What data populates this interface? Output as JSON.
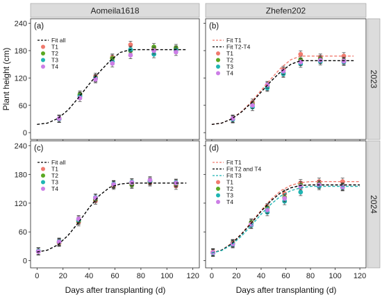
{
  "figure": {
    "ylabel": "Plant height (cm)",
    "xlabel": "Days after transplanting (d)",
    "col_titles": [
      "Aomeila1618",
      "Zhefen202"
    ],
    "row_titles": [
      "2023",
      "2024"
    ],
    "colors": {
      "T1": "#f07a6e",
      "T2": "#5aa822",
      "T3": "#1fb5b3",
      "T4": "#cc7ee6",
      "strip_bg": "#dcdcdc",
      "fit_black": "#000000",
      "fit_red": "#f07a6e",
      "fit_cyan": "#1fb5b3"
    }
  },
  "chart_data": [
    {
      "type": "scatter",
      "panel": "(a)",
      "column": "Aomeila1618",
      "row": "2023",
      "xlim": [
        -5,
        125
      ],
      "ylim": [
        -15,
        250
      ],
      "xticks": [
        0,
        20,
        40,
        60,
        80,
        100,
        120
      ],
      "yticks": [
        0,
        60,
        120,
        180,
        240
      ],
      "legend_position": "top-left",
      "fits": [
        {
          "name": "Fit all",
          "style": "dashed",
          "color": "#000000",
          "x": [
            0,
            8,
            16,
            24,
            32,
            40,
            48,
            56,
            64,
            72,
            80,
            90,
            100,
            110,
            115
          ],
          "y": [
            18,
            21,
            31,
            50,
            77,
            106,
            133,
            157,
            176,
            182,
            182,
            182,
            182,
            182,
            182
          ]
        }
      ],
      "series": [
        {
          "name": "T1",
          "x": [
            17,
            33,
            45,
            58,
            72,
            90,
            107
          ],
          "y": [
            30,
            82,
            123,
            165,
            193,
            184,
            183
          ]
        },
        {
          "name": "T2",
          "x": [
            17,
            33,
            45,
            58,
            72,
            90,
            107
          ],
          "y": [
            31,
            84,
            120,
            163,
            180,
            188,
            186
          ]
        },
        {
          "name": "T3",
          "x": [
            17,
            33,
            45,
            58,
            72,
            90,
            107
          ],
          "y": [
            30,
            80,
            119,
            156,
            182,
            172,
            181
          ]
        },
        {
          "name": "T4",
          "x": [
            17,
            33,
            45,
            58,
            72,
            90,
            107
          ],
          "y": [
            31,
            76,
            117,
            152,
            170,
            180,
            177
          ]
        }
      ]
    },
    {
      "type": "scatter",
      "panel": "(b)",
      "column": "Zhefen202",
      "row": "2023",
      "xlim": [
        -5,
        125
      ],
      "ylim": [
        -15,
        250
      ],
      "xticks": [
        0,
        20,
        40,
        60,
        80,
        100,
        120
      ],
      "yticks": [
        0,
        60,
        120,
        180,
        240
      ],
      "legend_position": "top-left",
      "fits": [
        {
          "name": "Fit T1",
          "style": "dashed",
          "color": "#f07a6e",
          "x": [
            0,
            8,
            16,
            24,
            32,
            40,
            48,
            56,
            64,
            72,
            80,
            90,
            100,
            110,
            115
          ],
          "y": [
            18,
            21,
            30,
            46,
            67,
            93,
            118,
            142,
            160,
            168,
            168,
            168,
            168,
            168,
            168
          ]
        },
        {
          "name": "Fit T2-T4",
          "style": "dashed",
          "color": "#000000",
          "x": [
            0,
            8,
            16,
            24,
            32,
            40,
            48,
            56,
            64,
            72,
            80,
            90,
            100,
            110,
            115
          ],
          "y": [
            18,
            21,
            30,
            45,
            65,
            89,
            113,
            134,
            150,
            158,
            158,
            158,
            158,
            158,
            158
          ]
        }
      ],
      "series": [
        {
          "name": "T1",
          "x": [
            17,
            33,
            45,
            58,
            72,
            88,
            107
          ],
          "y": [
            30,
            66,
            103,
            138,
            172,
            165,
            168
          ]
        },
        {
          "name": "T2",
          "x": [
            17,
            33,
            45,
            58,
            72,
            88,
            107
          ],
          "y": [
            30,
            62,
            100,
            131,
            160,
            162,
            158
          ]
        },
        {
          "name": "T3",
          "x": [
            17,
            33,
            45,
            58,
            72,
            88,
            107
          ],
          "y": [
            29,
            56,
            98,
            129,
            151,
            156,
            155
          ]
        },
        {
          "name": "T4",
          "x": [
            17,
            33,
            45,
            58,
            72,
            88,
            107
          ],
          "y": [
            31,
            60,
            105,
            135,
            155,
            159,
            157
          ]
        }
      ]
    },
    {
      "type": "scatter",
      "panel": "(c)",
      "column": "Aomeila1618",
      "row": "2024",
      "xlim": [
        -5,
        125
      ],
      "ylim": [
        -15,
        250
      ],
      "xticks": [
        0,
        20,
        40,
        60,
        80,
        100,
        120
      ],
      "yticks": [
        0,
        60,
        120,
        180,
        240
      ],
      "legend_position": "top-left",
      "fits": [
        {
          "name": "Fit all",
          "style": "dashed",
          "color": "#000000",
          "x": [
            0,
            8,
            16,
            24,
            32,
            40,
            48,
            56,
            64,
            72,
            80,
            90,
            100,
            110,
            115
          ],
          "y": [
            18,
            22,
            33,
            53,
            80,
            110,
            136,
            153,
            160,
            162,
            162,
            162,
            162,
            162,
            162
          ]
        }
      ],
      "series": [
        {
          "name": "T1",
          "x": [
            1,
            17,
            32,
            45,
            59,
            73,
            87,
            107
          ],
          "y": [
            20,
            37,
            80,
            125,
            156,
            160,
            163,
            156
          ]
        },
        {
          "name": "T2",
          "x": [
            1,
            17,
            32,
            45,
            59,
            73,
            87,
            107
          ],
          "y": [
            19,
            38,
            83,
            128,
            158,
            158,
            165,
            160
          ]
        },
        {
          "name": "T3",
          "x": [
            1,
            17,
            32,
            45,
            59,
            73,
            87,
            107
          ],
          "y": [
            20,
            40,
            85,
            132,
            160,
            164,
            166,
            163
          ]
        },
        {
          "name": "T4",
          "x": [
            1,
            17,
            32,
            45,
            59,
            73,
            87,
            107
          ],
          "y": [
            19,
            39,
            87,
            131,
            159,
            163,
            168,
            162
          ]
        }
      ]
    },
    {
      "type": "scatter",
      "panel": "(d)",
      "column": "Zhefen202",
      "row": "2024",
      "xlim": [
        -5,
        125
      ],
      "ylim": [
        -15,
        250
      ],
      "xticks": [
        0,
        20,
        40,
        60,
        80,
        100,
        120
      ],
      "yticks": [
        0,
        60,
        120,
        180,
        240
      ],
      "legend_position": "top-left",
      "fits": [
        {
          "name": "Fit T1",
          "style": "dashed",
          "color": "#f07a6e",
          "x": [
            0,
            8,
            16,
            24,
            32,
            40,
            48,
            56,
            64,
            72,
            80,
            90,
            100,
            110,
            120
          ],
          "y": [
            16,
            22,
            36,
            56,
            80,
            105,
            128,
            146,
            157,
            163,
            165,
            165,
            165,
            165,
            165
          ]
        },
        {
          "name": "Fit T2 and T4",
          "style": "dashed",
          "color": "#000000",
          "x": [
            0,
            8,
            16,
            24,
            32,
            40,
            48,
            56,
            64,
            72,
            80,
            90,
            100,
            110,
            120
          ],
          "y": [
            16,
            22,
            35,
            55,
            78,
            103,
            125,
            142,
            152,
            157,
            158,
            158,
            158,
            158,
            158
          ]
        },
        {
          "name": "Fit T3",
          "style": "dashed",
          "color": "#1fb5b3",
          "x": [
            0,
            8,
            16,
            24,
            32,
            40,
            48,
            56,
            64,
            72,
            80,
            90,
            100,
            110,
            120
          ],
          "y": [
            16,
            21,
            33,
            51,
            73,
            97,
            118,
            135,
            146,
            152,
            155,
            155,
            155,
            155,
            155
          ]
        }
      ],
      "series": [
        {
          "name": "T1",
          "x": [
            1,
            17,
            32,
            45,
            59,
            72,
            87,
            106
          ],
          "y": [
            18,
            37,
            79,
            112,
            140,
            162,
            165,
            165
          ]
        },
        {
          "name": "T2",
          "x": [
            1,
            17,
            32,
            45,
            59,
            72,
            87,
            106
          ],
          "y": [
            17,
            36,
            80,
            110,
            132,
            158,
            160,
            155
          ]
        },
        {
          "name": "T3",
          "x": [
            1,
            17,
            32,
            45,
            59,
            72,
            87,
            106
          ],
          "y": [
            16,
            34,
            74,
            101,
            124,
            143,
            155,
            153
          ]
        },
        {
          "name": "T4",
          "x": [
            1,
            17,
            32,
            45,
            59,
            72,
            87,
            106
          ],
          "y": [
            17,
            35,
            76,
            106,
            130,
            155,
            158,
            154
          ]
        }
      ]
    }
  ]
}
